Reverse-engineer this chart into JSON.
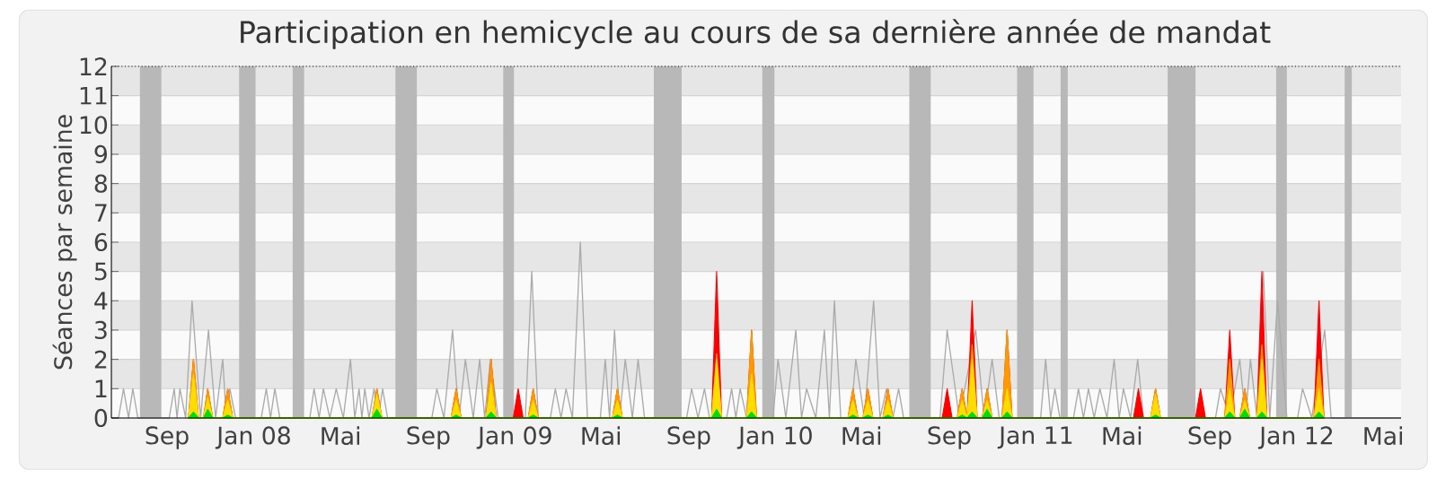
{
  "chart_data": {
    "type": "area",
    "title": "Participation en hemicycle au cours de sa dernière année de mandat",
    "ylabel": "Séances par semaine",
    "xlim": [
      "2007-06-15",
      "2012-05-26"
    ],
    "ylim": [
      0,
      12
    ],
    "xticks": [
      {
        "value": "2007-09-01",
        "label": "Sep"
      },
      {
        "value": "2008-01-01",
        "label": "Jan 08"
      },
      {
        "value": "2008-05-01",
        "label": "Mai"
      },
      {
        "value": "2008-09-01",
        "label": "Sep"
      },
      {
        "value": "2009-01-01",
        "label": "Jan 09"
      },
      {
        "value": "2009-05-01",
        "label": "Mai"
      },
      {
        "value": "2009-09-01",
        "label": "Sep"
      },
      {
        "value": "2010-01-01",
        "label": "Jan 10"
      },
      {
        "value": "2010-05-01",
        "label": "Mai"
      },
      {
        "value": "2010-09-01",
        "label": "Sep"
      },
      {
        "value": "2011-01-01",
        "label": "Jan 11"
      },
      {
        "value": "2011-05-01",
        "label": "Mai"
      },
      {
        "value": "2011-09-01",
        "label": "Sep"
      },
      {
        "value": "2012-01-01",
        "label": "Jan 12"
      },
      {
        "value": "2012-05-01",
        "label": "Mai"
      }
    ],
    "yticks": [
      0,
      1,
      2,
      3,
      4,
      5,
      6,
      7,
      8,
      9,
      10,
      11,
      12
    ],
    "grid": "y",
    "bands": [
      {
        "axis": "x",
        "from": "2007-07-25",
        "to": "2007-08-24",
        "color": "#b8b8b8"
      },
      {
        "axis": "x",
        "from": "2007-12-11",
        "to": "2008-01-03",
        "color": "#b8b8b8"
      },
      {
        "axis": "x",
        "from": "2008-02-24",
        "to": "2008-03-11",
        "color": "#b8b8b8"
      },
      {
        "axis": "x",
        "from": "2008-07-17",
        "to": "2008-08-16",
        "color": "#b8b8b8"
      },
      {
        "axis": "x",
        "from": "2008-12-15",
        "to": "2008-12-30",
        "color": "#b8b8b8"
      },
      {
        "axis": "x",
        "from": "2009-07-14",
        "to": "2009-08-22",
        "color": "#b8b8b8"
      },
      {
        "axis": "x",
        "from": "2009-12-13",
        "to": "2009-12-30",
        "color": "#b8b8b8"
      },
      {
        "axis": "x",
        "from": "2010-07-07",
        "to": "2010-08-06",
        "color": "#b8b8b8"
      },
      {
        "axis": "x",
        "from": "2010-12-05",
        "to": "2010-12-28",
        "color": "#b8b8b8"
      },
      {
        "axis": "x",
        "from": "2011-02-04",
        "to": "2011-02-14",
        "color": "#b8b8b8"
      },
      {
        "axis": "x",
        "from": "2011-07-04",
        "to": "2011-08-12",
        "color": "#b8b8b8"
      },
      {
        "axis": "x",
        "from": "2011-12-03",
        "to": "2011-12-18",
        "color": "#b8b8b8"
      },
      {
        "axis": "x",
        "from": "2012-03-08",
        "to": "2012-03-18",
        "color": "#b8b8b8"
      }
    ],
    "x": [
      "2007-10-01",
      "2007-10-08",
      "2007-10-15",
      "2007-10-22",
      "2007-10-28",
      "2007-11-04",
      "2007-11-18",
      "2007-11-25",
      "2007-12-02",
      "2008-06-14",
      "2008-06-21",
      "2008-06-28",
      "2008-10-03",
      "2008-10-10",
      "2008-10-17",
      "2008-11-21",
      "2008-11-28",
      "2008-12-05",
      "2008-12-29",
      "2009-01-05",
      "2009-01-12",
      "2009-01-19",
      "2009-01-26",
      "2009-02-02",
      "2009-05-17",
      "2009-05-24",
      "2009-05-31",
      "2009-10-03",
      "2009-10-10",
      "2009-10-17",
      "2009-11-21",
      "2009-11-28",
      "2009-12-05",
      "2010-04-12",
      "2010-04-19",
      "2010-04-26",
      "2010-05-03",
      "2010-05-10",
      "2010-05-17",
      "2010-05-31",
      "2010-06-07",
      "2010-06-14",
      "2010-08-22",
      "2010-08-29",
      "2010-09-05",
      "2010-09-12",
      "2010-09-19",
      "2010-09-26",
      "2010-09-26",
      "2010-10-03",
      "2010-10-10",
      "2010-10-17",
      "2010-10-24",
      "2010-10-31",
      "2010-11-14",
      "2010-11-21",
      "2010-11-28",
      "2011-05-17",
      "2011-05-24",
      "2011-05-31",
      "2011-06-10",
      "2011-06-17",
      "2011-06-24",
      "2011-08-12",
      "2011-08-19",
      "2011-08-26",
      "2011-09-22",
      "2011-09-29",
      "2011-10-06",
      "2011-10-13",
      "2011-10-20",
      "2011-10-27",
      "2011-11-06",
      "2011-11-13",
      "2011-11-20",
      "2012-01-25",
      "2012-02-01",
      "2012-02-08"
    ],
    "series": [
      {
        "type": "line",
        "color": "#aaaaaa",
        "x": [
          "2007-06-15",
          "2007-06-25",
          "2007-07-02",
          "2007-07-09",
          "2007-07-15",
          "2007-07-22",
          "2007-09-04",
          "2007-09-11",
          "2007-09-15",
          "2007-09-19",
          "2007-09-27",
          "2007-10-06",
          "2007-10-18",
          "2007-10-29",
          "2007-11-08",
          "2007-11-18",
          "2007-11-23",
          "2007-11-28",
          "2007-12-06",
          "2008-01-11",
          "2008-01-18",
          "2008-01-24",
          "2008-01-30",
          "2008-02-06",
          "2008-03-19",
          "2008-03-25",
          "2008-04-01",
          "2008-04-07",
          "2008-04-16",
          "2008-04-25",
          "2008-05-05",
          "2008-05-15",
          "2008-05-21",
          "2008-05-27",
          "2008-05-31",
          "2008-06-04",
          "2008-06-10",
          "2008-06-17",
          "2008-06-23",
          "2008-06-29",
          "2008-07-06",
          "2008-09-06",
          "2008-09-13",
          "2008-09-23",
          "2008-10-05",
          "2008-10-14",
          "2008-10-23",
          "2008-11-03",
          "2008-11-12",
          "2008-11-19",
          "2008-11-27",
          "2008-12-08",
          "2009-01-15",
          "2009-01-24",
          "2009-02-02",
          "2009-02-19",
          "2009-02-26",
          "2009-03-06",
          "2009-03-13",
          "2009-03-22",
          "2009-04-02",
          "2009-04-12",
          "2009-04-30",
          "2009-05-07",
          "2009-05-13",
          "2009-05-20",
          "2009-05-27",
          "2009-06-04",
          "2009-06-14",
          "2009-06-22",
          "2009-07-01",
          "2009-08-29",
          "2009-09-05",
          "2009-09-14",
          "2009-09-23",
          "2009-09-30",
          "2009-10-24",
          "2009-10-31",
          "2009-11-06",
          "2009-11-12",
          "2009-11-21",
          "2009-12-28",
          "2010-01-04",
          "2010-01-15",
          "2010-01-29",
          "2010-02-06",
          "2010-02-13",
          "2010-02-26",
          "2010-03-10",
          "2010-03-17",
          "2010-03-24",
          "2010-04-02",
          "2010-04-16",
          "2010-04-23",
          "2010-05-05",
          "2010-05-18",
          "2010-05-27",
          "2010-06-05",
          "2010-06-14",
          "2010-06-22",
          "2010-06-29",
          "2010-08-19",
          "2010-08-29",
          "2010-09-15",
          "2010-10-08",
          "2010-10-20",
          "2010-10-31",
          "2010-11-10",
          "2011-01-07",
          "2011-01-14",
          "2011-01-21",
          "2011-01-27",
          "2011-02-03",
          "2011-02-22",
          "2011-03-01",
          "2011-03-08",
          "2011-03-15",
          "2011-03-23",
          "2011-03-31",
          "2011-04-10",
          "2011-04-20",
          "2011-04-27",
          "2011-05-03",
          "2011-05-13",
          "2011-05-23",
          "2011-05-31",
          "2011-09-09",
          "2011-09-16",
          "2011-09-29",
          "2011-10-13",
          "2011-10-21",
          "2011-10-28",
          "2011-11-06",
          "2011-11-15",
          "2011-11-24",
          "2011-12-05",
          "2011-12-18",
          "2012-01-02",
          "2012-01-09",
          "2012-01-22",
          "2012-02-09",
          "2012-02-18",
          "2012-05-26"
        ],
        "values": [
          0,
          0,
          1,
          0,
          1,
          0,
          0,
          1,
          0,
          1,
          0,
          4,
          0,
          3,
          0,
          2,
          0,
          1,
          0,
          0,
          1,
          0,
          1,
          0,
          0,
          1,
          0,
          1,
          0,
          1,
          0,
          2,
          0,
          1,
          0,
          1,
          0,
          1,
          0,
          1,
          0,
          0,
          1,
          0,
          3,
          0,
          2,
          0,
          2,
          0,
          2,
          0,
          0,
          5,
          0,
          0,
          1,
          0,
          1,
          0,
          6,
          0,
          0,
          2,
          0,
          3,
          0,
          2,
          0,
          2,
          0,
          0,
          1,
          0,
          1,
          0,
          0,
          1,
          0,
          1,
          0,
          0,
          2,
          0,
          3,
          0,
          1,
          0,
          3,
          0,
          4,
          0,
          0,
          2,
          0,
          4,
          0,
          1,
          0,
          1,
          0,
          0,
          3,
          0,
          3,
          0,
          2,
          0,
          0,
          2,
          0,
          1,
          0,
          0,
          1,
          0,
          1,
          0,
          1,
          0,
          2,
          0,
          1,
          0,
          2,
          0,
          0,
          1,
          0,
          2,
          0,
          2,
          0,
          5,
          0,
          4,
          0,
          0,
          1,
          0,
          3,
          0,
          0
        ]
      },
      {
        "color": "#ff0000",
        "values": [
          0,
          2,
          0,
          0,
          1,
          0,
          0,
          1,
          0,
          0,
          1,
          0,
          0,
          1,
          0,
          0,
          2,
          0,
          0,
          1,
          0,
          0,
          1,
          0,
          0,
          1,
          0,
          0,
          5,
          0,
          0,
          3,
          0,
          0,
          1,
          0,
          0,
          1,
          0,
          0,
          1,
          0,
          0,
          1,
          0,
          0,
          1,
          0,
          0,
          4,
          0,
          0,
          1,
          0,
          0,
          3,
          0,
          0,
          1,
          0,
          0,
          1,
          0,
          0,
          1,
          0,
          0,
          3,
          0,
          0,
          1,
          0,
          0,
          5,
          0,
          0,
          4,
          0
        ]
      },
      {
        "color": "#ff9900",
        "values": [
          0,
          2,
          0,
          0,
          1,
          0,
          0,
          1,
          0,
          0,
          1,
          0,
          0,
          1,
          0,
          0,
          2,
          0,
          0,
          0,
          0,
          0,
          1,
          0,
          0,
          1,
          0,
          0,
          2.2,
          0,
          0,
          3,
          0,
          0,
          1,
          0,
          0,
          1,
          0,
          0,
          1,
          0,
          0,
          0,
          0,
          0,
          1,
          0,
          0,
          2.5,
          0,
          0,
          1,
          0,
          0,
          3,
          0,
          0,
          0,
          0,
          0,
          1,
          0,
          0,
          0,
          0,
          0,
          2,
          0,
          0,
          1,
          0,
          0,
          2.5,
          0,
          0,
          2,
          0
        ]
      },
      {
        "color": "#ffdd00",
        "values": [
          0,
          1.5,
          0,
          0,
          0.7,
          0,
          0,
          0.6,
          0,
          0,
          0.8,
          0,
          0,
          0.6,
          0,
          0,
          1.2,
          0,
          0,
          0,
          0,
          0,
          0.6,
          0,
          0,
          0.6,
          0,
          0,
          2,
          0,
          0,
          1.5,
          0,
          0,
          0.6,
          0,
          0,
          0.6,
          0,
          0,
          0.6,
          0,
          0,
          0,
          0,
          0,
          0.6,
          0,
          0,
          2,
          0,
          0,
          0.6,
          0,
          0,
          1,
          0,
          0,
          0,
          0,
          0,
          0.8,
          0,
          0,
          0,
          0,
          0,
          1,
          0,
          0,
          0.6,
          0,
          0,
          2,
          0,
          0,
          1,
          0
        ]
      },
      {
        "color": "#00dd00",
        "values": [
          0,
          0.2,
          0,
          0,
          0.3,
          0,
          0,
          0.1,
          0,
          0,
          0.3,
          0,
          0,
          0.1,
          0,
          0,
          0.2,
          0,
          0,
          0,
          0,
          0,
          0.1,
          0,
          0,
          0.1,
          0,
          0,
          0.3,
          0,
          0,
          0.2,
          0,
          0,
          0.1,
          0,
          0,
          0.1,
          0,
          0,
          0.1,
          0,
          0,
          0,
          0,
          0,
          0.1,
          0,
          0,
          0.2,
          0,
          0,
          0.3,
          0,
          0,
          0.2,
          0,
          0,
          0,
          0,
          0,
          0.1,
          0,
          0,
          0,
          0,
          0,
          0.2,
          0,
          0,
          0.3,
          0,
          0,
          0.2,
          0,
          0,
          0.2,
          0
        ]
      }
    ]
  }
}
